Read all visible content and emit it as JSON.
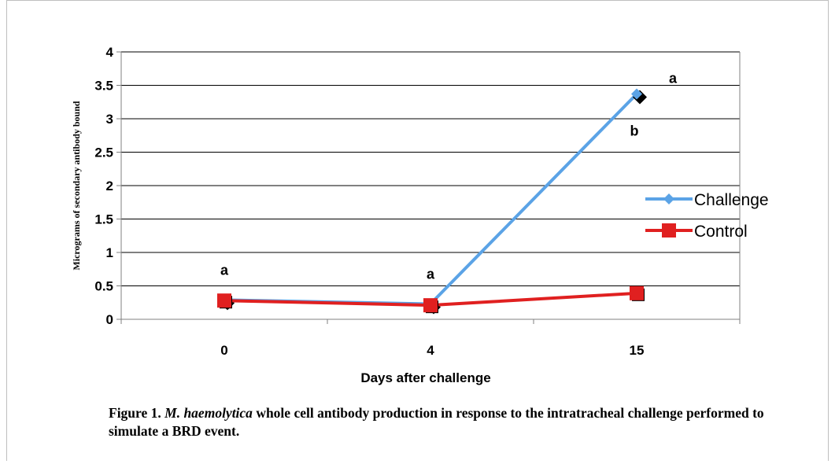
{
  "chart_data": {
    "type": "line",
    "title": "",
    "xlabel": "Days after challenge",
    "ylabel": "Micrograms of secondary antibody bound",
    "categories": [
      "0",
      "4",
      "15"
    ],
    "ylim": [
      0,
      4
    ],
    "yticks": [
      "0",
      "0.5",
      "1",
      "1.5",
      "2",
      "2.5",
      "3",
      "3.5",
      "4"
    ],
    "grid": true,
    "legend_position": "right",
    "series": [
      {
        "name": "Challenge",
        "values": [
          0.29,
          0.23,
          3.37
        ],
        "color": "#5ba3e6",
        "marker": "diamond"
      },
      {
        "name": "Control",
        "values": [
          0.28,
          0.21,
          0.39
        ],
        "color": "#e02020",
        "marker": "square"
      }
    ],
    "annotations": [
      {
        "category": "0",
        "text": "a"
      },
      {
        "category": "4",
        "text": "a"
      },
      {
        "category": "15",
        "text": "b"
      },
      {
        "category": "15",
        "text": "a"
      }
    ]
  },
  "caption": {
    "label": "Figure 1.",
    "species": "M. haemolytica",
    "text": " whole cell antibody production in response to the intratracheal challenge performed to simulate a BRD event."
  }
}
